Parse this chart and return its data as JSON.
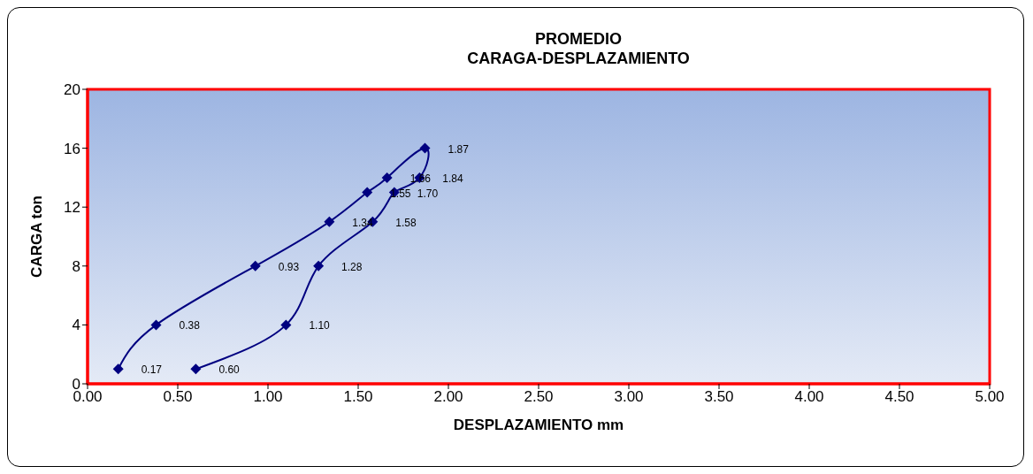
{
  "chart_data": {
    "type": "line",
    "title": "PROMEDIO\nCARAGA-DESPLAZAMIENTO",
    "xlabel": "DESPLAZAMIENTO mm",
    "ylabel": "CARGA ton",
    "x": [
      0.17,
      0.38,
      0.93,
      1.34,
      1.55,
      1.66,
      1.87,
      1.84,
      1.7,
      1.58,
      1.28,
      1.1,
      0.6
    ],
    "series": [
      {
        "color": "#000080",
        "values": [
          1,
          4,
          8,
          11,
          13,
          14,
          16,
          14,
          13,
          11,
          8,
          4,
          1
        ]
      }
    ],
    "annotations": [
      {
        "text": "0.17",
        "x": 0.17,
        "y": 1
      },
      {
        "text": "0.38",
        "x": 0.38,
        "y": 4
      },
      {
        "text": "0.93",
        "x": 0.93,
        "y": 8
      },
      {
        "text": "1.34",
        "x": 1.34,
        "y": 11
      },
      {
        "text": "1.55",
        "x": 1.55,
        "y": 13
      },
      {
        "text": "1.66",
        "x": 1.66,
        "y": 14
      },
      {
        "text": "1.87",
        "x": 1.87,
        "y": 16
      },
      {
        "text": "1.84",
        "x": 1.84,
        "y": 14
      },
      {
        "text": "1.70",
        "x": 1.7,
        "y": 13
      },
      {
        "text": "1.58",
        "x": 1.58,
        "y": 11
      },
      {
        "text": "1.28",
        "x": 1.28,
        "y": 8
      },
      {
        "text": "1.10",
        "x": 1.1,
        "y": 4
      },
      {
        "text": "0.60",
        "x": 0.6,
        "y": 1
      }
    ],
    "xlim": [
      0,
      5
    ],
    "xticks": [
      {
        "value": 0,
        "label": "0.00"
      },
      {
        "value": 0.5,
        "label": "0.50"
      },
      {
        "value": 1,
        "label": "1.00"
      },
      {
        "value": 1.5,
        "label": "1.50"
      },
      {
        "value": 2,
        "label": "2.00"
      },
      {
        "value": 2.5,
        "label": "2.50"
      },
      {
        "value": 3,
        "label": "3.00"
      },
      {
        "value": 3.5,
        "label": "3.50"
      },
      {
        "value": 4,
        "label": "4.00"
      },
      {
        "value": 4.5,
        "label": "4.50"
      },
      {
        "value": 5,
        "label": "5.00"
      }
    ],
    "ylim": [
      0,
      20
    ],
    "yticks": [
      0,
      4,
      8,
      12,
      16,
      20
    ],
    "marker": "diamond",
    "line_style": "solid"
  }
}
